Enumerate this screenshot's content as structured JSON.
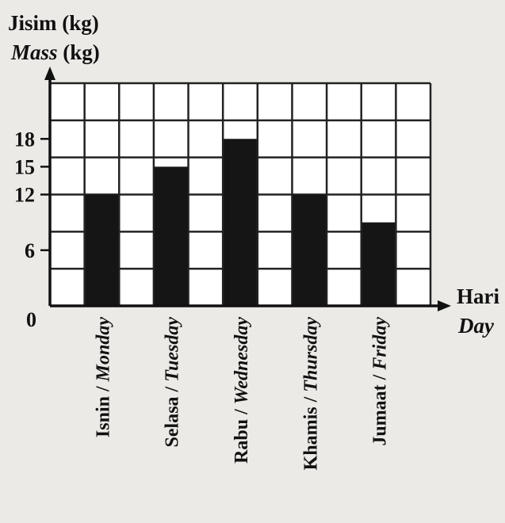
{
  "chart_data": {
    "type": "bar",
    "ylabel_line1": "Jisim (kg)",
    "ylabel_line2_italic": "Mass",
    "ylabel_line2_rest": " (kg)",
    "xlabel_line1": "Hari",
    "xlabel_line2": "Day",
    "origin_label": "0",
    "y_ticks": [
      {
        "value": 6,
        "label": "6"
      },
      {
        "value": 12,
        "label": "12"
      },
      {
        "value": 15,
        "label": "15"
      },
      {
        "value": 18,
        "label": "18"
      }
    ],
    "ylim": [
      0,
      24
    ],
    "grid": true,
    "bar_color": "#151515",
    "categories": [
      {
        "malay": "Isnin",
        "english": "Monday"
      },
      {
        "malay": "Selasa",
        "english": "Tuesday"
      },
      {
        "malay": "Rabu",
        "english": "Wednesday"
      },
      {
        "malay": "Khamis",
        "english": "Thursday"
      },
      {
        "malay": "Jumaat",
        "english": "Friday"
      }
    ],
    "values": [
      12,
      15,
      18,
      12,
      9
    ]
  }
}
